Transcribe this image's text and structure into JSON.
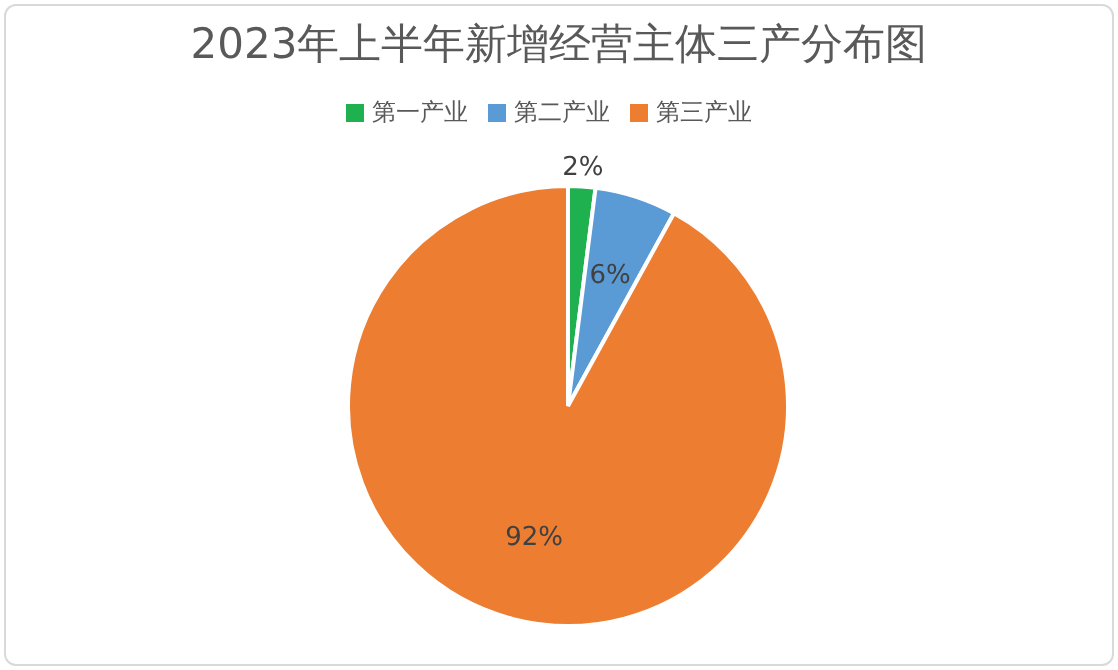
{
  "chart_data": {
    "type": "pie",
    "title": "2023年上半年新增经营主体三产分布图",
    "categories": [
      "第一产业",
      "第二产业",
      "第三产业"
    ],
    "values": [
      2,
      6,
      92
    ],
    "colors": [
      "#1fb04f",
      "#5b9bd5",
      "#ed7d31"
    ],
    "value_labels": [
      "2%",
      "6%",
      "92%"
    ],
    "legend": "top"
  }
}
